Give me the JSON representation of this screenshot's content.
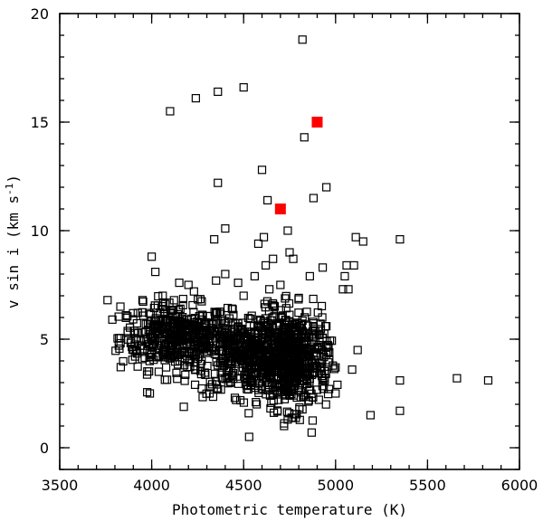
{
  "chart_data": {
    "type": "scatter",
    "title": "",
    "xlabel": "Photometric temperature (K)",
    "ylabel_main": "v sin i (km s",
    "ylabel_exp": "-1",
    "ylabel_close": ")",
    "xlim": [
      3500,
      6000
    ],
    "ylim": [
      -1,
      20
    ],
    "x_ticks_major": [
      3500,
      4000,
      4500,
      5000,
      5500,
      6000
    ],
    "x_tick_labels": [
      "3500",
      "4000",
      "4500",
      "5000",
      "5500",
      "6000"
    ],
    "x_ticks_minor_step": 100,
    "y_ticks_major": [
      0,
      5,
      10,
      15,
      20
    ],
    "y_tick_labels": [
      "0",
      "5",
      "10",
      "15",
      "20"
    ],
    "y_ticks_minor_step": 1,
    "grid": false,
    "colors": {
      "open_marker": "#000000",
      "highlight_marker": "#ff0000"
    },
    "series": [
      {
        "marker": "open-square",
        "points": [
          [
            4820,
            18.8
          ],
          [
            4500,
            16.6
          ],
          [
            4360,
            16.4
          ],
          [
            4240,
            16.1
          ],
          [
            4100,
            15.5
          ],
          [
            4830,
            14.3
          ],
          [
            4600,
            12.8
          ],
          [
            4360,
            12.2
          ],
          [
            4950,
            12.0
          ],
          [
            4880,
            11.5
          ],
          [
            4630,
            11.4
          ],
          [
            4400,
            10.1
          ],
          [
            4740,
            10.0
          ],
          [
            4340,
            9.6
          ],
          [
            4610,
            9.7
          ],
          [
            5110,
            9.7
          ],
          [
            5350,
            9.6
          ],
          [
            5150,
            9.5
          ],
          [
            4580,
            9.4
          ],
          [
            4750,
            9.0
          ],
          [
            4660,
            8.7
          ],
          [
            4770,
            8.7
          ],
          [
            4000,
            8.8
          ],
          [
            4020,
            8.1
          ],
          [
            5060,
            8.4
          ],
          [
            5100,
            8.4
          ],
          [
            4930,
            8.3
          ],
          [
            4620,
            8.4
          ],
          [
            4560,
            7.9
          ],
          [
            4400,
            8.0
          ],
          [
            4860,
            7.9
          ],
          [
            5050,
            7.9
          ],
          [
            4150,
            7.6
          ],
          [
            4200,
            7.5
          ],
          [
            4350,
            7.7
          ],
          [
            4470,
            7.6
          ],
          [
            4700,
            7.5
          ],
          [
            5040,
            7.3
          ],
          [
            5070,
            7.3
          ],
          [
            3760,
            6.8
          ],
          [
            3830,
            6.5
          ],
          [
            3860,
            6.1
          ],
          [
            3950,
            6.8
          ],
          [
            4060,
            7.0
          ],
          [
            4230,
            7.2
          ],
          [
            4500,
            7.0
          ],
          [
            4640,
            7.3
          ],
          [
            4800,
            6.9
          ],
          [
            3990,
            2.5
          ],
          [
            4530,
            0.5
          ],
          [
            4720,
            1.0
          ],
          [
            4740,
            1.3
          ],
          [
            4870,
            0.7
          ],
          [
            5190,
            1.5
          ],
          [
            5350,
            1.7
          ],
          [
            5350,
            3.1
          ],
          [
            5660,
            3.2
          ],
          [
            5830,
            3.1
          ],
          [
            5010,
            2.9
          ],
          [
            5000,
            2.5
          ],
          [
            5090,
            3.6
          ],
          [
            5120,
            4.5
          ],
          [
            5000,
            3.7
          ],
          [
            4950,
            5.6
          ]
        ]
      },
      {
        "marker": "filled-square",
        "color": "#ff0000",
        "points": [
          [
            4900,
            15.0
          ],
          [
            4700,
            11.0
          ]
        ]
      }
    ],
    "dense_clusters": [
      {
        "marker": "open-square",
        "count": 420,
        "x_center": 4130,
        "y_center": 5.1,
        "x_spread": 150,
        "y_spread": 0.75
      },
      {
        "marker": "open-square",
        "count": 560,
        "x_center": 4560,
        "y_center": 4.3,
        "x_spread": 170,
        "y_spread": 0.95
      },
      {
        "marker": "open-square",
        "count": 460,
        "x_center": 4770,
        "y_center": 4.0,
        "x_spread": 95,
        "y_spread": 1.1
      }
    ]
  }
}
